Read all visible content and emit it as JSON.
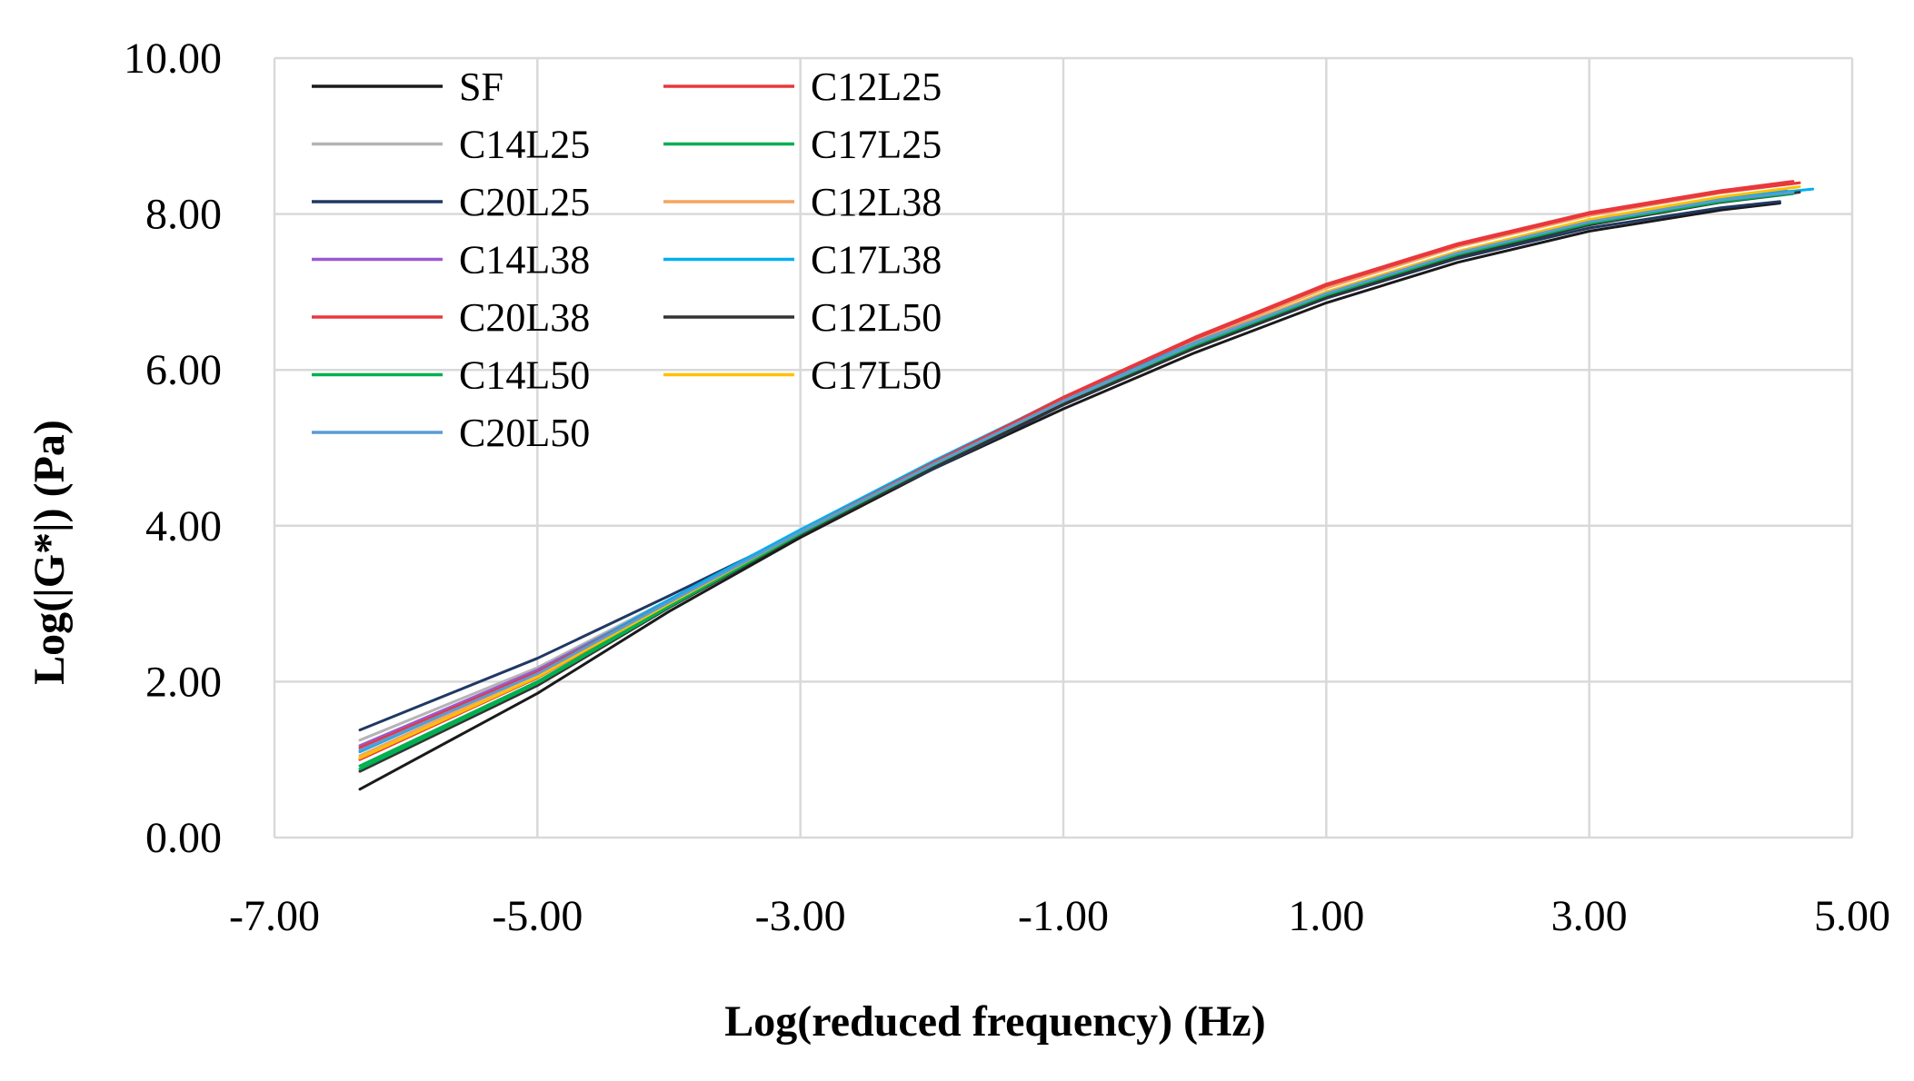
{
  "chart_data": {
    "type": "line",
    "title": "",
    "xlabel": "Log(reduced frequency) (Hz)",
    "ylabel": "Log(|G*|) (Pa)",
    "xlim": [
      -7,
      5
    ],
    "ylim": [
      0,
      10
    ],
    "x_ticks": [
      -7,
      -5,
      -3,
      -1,
      1,
      3,
      5
    ],
    "y_ticks": [
      0,
      2,
      4,
      6,
      8,
      10
    ],
    "x_tick_labels": [
      "-7.00",
      "-5.00",
      "-3.00",
      "-1.00",
      "1.00",
      "3.00",
      "5.00"
    ],
    "y_tick_labels": [
      "0.00",
      "2.00",
      "4.00",
      "6.00",
      "8.00",
      "10.00"
    ],
    "grid": true,
    "legend_position": "top-left",
    "series": [
      {
        "name": "SF",
        "color": "#1a1a1a",
        "x": [
          -6.35,
          -5,
          -4,
          -3,
          -2,
          -1,
          0,
          1,
          2,
          3,
          4,
          4.45
        ],
        "y": [
          0.62,
          1.85,
          2.9,
          3.85,
          4.72,
          5.5,
          6.22,
          6.86,
          7.38,
          7.78,
          8.05,
          8.14
        ]
      },
      {
        "name": "C12L25",
        "color": "#e8383d",
        "x": [
          -6.35,
          -5,
          -4,
          -3,
          -2,
          -1,
          0,
          1,
          2,
          3,
          4,
          4.55
        ],
        "y": [
          1.0,
          2.05,
          3.0,
          3.92,
          4.8,
          5.65,
          6.42,
          7.1,
          7.62,
          8.02,
          8.3,
          8.42
        ]
      },
      {
        "name": "C14L25",
        "color": "#b4b4b4",
        "x": [
          -6.35,
          -5,
          -4,
          -3,
          -2,
          -1,
          0,
          1,
          2,
          3,
          4,
          4.5
        ],
        "y": [
          1.25,
          2.18,
          3.05,
          3.9,
          4.75,
          5.58,
          6.32,
          6.98,
          7.5,
          7.9,
          8.18,
          8.28
        ]
      },
      {
        "name": "C17L25",
        "color": "#00b050",
        "x": [
          -6.35,
          -5,
          -4,
          -3,
          -2,
          -1,
          0,
          1,
          2,
          3,
          4,
          4.55
        ],
        "y": [
          0.92,
          2.0,
          2.98,
          3.9,
          4.76,
          5.58,
          6.3,
          6.95,
          7.47,
          7.88,
          8.15,
          8.26
        ]
      },
      {
        "name": "C20L25",
        "color": "#203864",
        "x": [
          -6.35,
          -5,
          -4,
          -3,
          -2,
          -1,
          0,
          1,
          2,
          3,
          4,
          4.45
        ],
        "y": [
          1.38,
          2.3,
          3.1,
          3.92,
          4.72,
          5.55,
          6.28,
          6.92,
          7.43,
          7.82,
          8.08,
          8.16
        ]
      },
      {
        "name": "C12L38",
        "color": "#f4a460",
        "x": [
          -6.35,
          -5,
          -4,
          -3,
          -2,
          -1,
          0,
          1,
          2,
          3,
          4,
          4.6
        ],
        "y": [
          1.05,
          2.1,
          3.02,
          3.93,
          4.79,
          5.62,
          6.38,
          7.05,
          7.58,
          7.98,
          8.27,
          8.4
        ]
      },
      {
        "name": "C14L38",
        "color": "#9b59d0",
        "x": [
          -6.35,
          -5,
          -4,
          -3,
          -2,
          -1,
          0,
          1,
          2,
          3,
          4,
          4.5
        ],
        "y": [
          1.18,
          2.15,
          3.03,
          3.9,
          4.76,
          5.6,
          6.35,
          7.0,
          7.52,
          7.92,
          8.2,
          8.3
        ]
      },
      {
        "name": "C17L38",
        "color": "#00b0f0",
        "x": [
          -6.35,
          -5,
          -4,
          -3,
          -2,
          -1,
          0,
          1,
          2,
          3,
          4,
          4.7
        ],
        "y": [
          1.1,
          2.12,
          3.05,
          3.95,
          4.82,
          5.64,
          6.35,
          6.98,
          7.5,
          7.92,
          8.2,
          8.32
        ]
      },
      {
        "name": "C20L38",
        "color": "#e8383d",
        "x": [
          -6.35,
          -5,
          -4,
          -3,
          -2,
          -1,
          0,
          1,
          2,
          3,
          4,
          4.6
        ],
        "y": [
          1.15,
          2.12,
          3.02,
          3.92,
          4.8,
          5.64,
          6.4,
          7.08,
          7.6,
          8.0,
          8.28,
          8.4
        ]
      },
      {
        "name": "C12L50",
        "color": "#333333",
        "x": [
          -6.35,
          -5,
          -4,
          -3,
          -2,
          -1,
          0,
          1,
          2,
          3,
          4,
          4.6
        ],
        "y": [
          0.85,
          1.95,
          2.95,
          3.88,
          4.74,
          5.56,
          6.28,
          6.93,
          7.45,
          7.86,
          8.15,
          8.28
        ]
      },
      {
        "name": "C14L50",
        "color": "#00b050",
        "x": [
          -6.35,
          -5,
          -4,
          -3,
          -2,
          -1,
          0,
          1,
          2,
          3,
          4,
          4.55
        ],
        "y": [
          0.88,
          1.98,
          2.96,
          3.9,
          4.77,
          5.6,
          6.32,
          6.96,
          7.48,
          7.88,
          8.16,
          8.27
        ]
      },
      {
        "name": "C17L50",
        "color": "#ffc000",
        "x": [
          -6.35,
          -5,
          -4,
          -3,
          -2,
          -1,
          0,
          1,
          2,
          3,
          4,
          4.6
        ],
        "y": [
          1.02,
          2.06,
          3.0,
          3.92,
          4.78,
          5.6,
          6.34,
          7.0,
          7.52,
          7.93,
          8.22,
          8.35
        ]
      },
      {
        "name": "C20L50",
        "color": "#5b9bd5",
        "x": [
          -6.35,
          -5,
          -4,
          -3,
          -2,
          -1,
          0,
          1,
          2,
          3,
          4,
          4.55
        ],
        "y": [
          1.12,
          2.1,
          3.02,
          3.92,
          4.78,
          5.6,
          6.34,
          6.98,
          7.5,
          7.9,
          8.18,
          8.28
        ]
      }
    ]
  }
}
